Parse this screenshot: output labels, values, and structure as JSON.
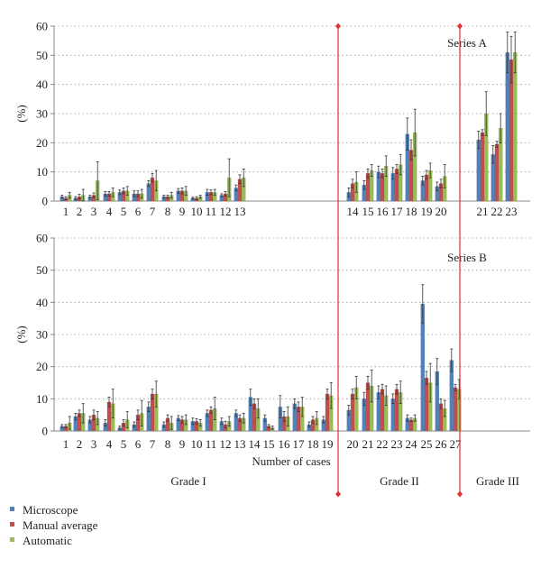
{
  "colors": {
    "microscope": "#4f81bd",
    "manual": "#c0504d",
    "automatic": "#9bbb59",
    "divider": "#e03030",
    "axis": "#888888",
    "grid": "#999999"
  },
  "legend": {
    "items": [
      {
        "label": "Microscope",
        "color": "#4f81bd"
      },
      {
        "label": "Manual average",
        "color": "#c0504d"
      },
      {
        "label": "Automatic",
        "color": "#9bbb59"
      }
    ]
  },
  "x_axis_title": "Number of cases",
  "grade_labels": [
    "Grade I",
    "Grade II",
    "Grade III"
  ],
  "chart_data": [
    {
      "type": "bar",
      "title": "Series A",
      "ylabel": "(%)",
      "ylim": [
        0,
        60
      ],
      "yticks": [
        0,
        10,
        20,
        30,
        40,
        50,
        60
      ],
      "y_grid": "dotted",
      "legend_position": "bottom-left",
      "series_names": [
        "Microscope",
        "Manual average",
        "Automatic"
      ],
      "groups": [
        {
          "grade": "Grade I",
          "categories": [
            "1",
            "2",
            "3",
            "4",
            "5",
            "6",
            "7",
            "8",
            "9",
            "10",
            "11",
            "12",
            "13"
          ],
          "series": [
            {
              "name": "Microscope",
              "values": [
                1.5,
                1.0,
                1.5,
                2.5,
                3.0,
                2.5,
                6.0,
                1.5,
                3.5,
                1.0,
                3.0,
                2.0,
                4.5
              ],
              "errors": [
                0.5,
                0.5,
                0.5,
                0.8,
                0.8,
                1.0,
                1.0,
                0.5,
                0.8,
                0.3,
                1.0,
                0.5,
                1.0
              ]
            },
            {
              "name": "Manual average",
              "values": [
                1.0,
                1.5,
                2.0,
                2.5,
                3.5,
                2.5,
                8.0,
                1.5,
                3.5,
                1.0,
                3.0,
                2.5,
                7.5
              ],
              "errors": [
                0.5,
                0.8,
                0.8,
                0.8,
                1.0,
                1.0,
                1.5,
                0.5,
                1.0,
                0.5,
                0.8,
                0.8,
                1.5
              ]
            },
            {
              "name": "Automatic",
              "values": [
                2.0,
                2.0,
                7.0,
                3.0,
                3.5,
                2.5,
                7.0,
                2.0,
                3.5,
                1.5,
                3.0,
                8.0,
                8.0
              ],
              "errors": [
                1.0,
                2.0,
                6.5,
                1.5,
                1.5,
                1.5,
                3.5,
                1.0,
                1.5,
                0.5,
                1.0,
                6.5,
                3.0
              ]
            }
          ]
        },
        {
          "grade": "Grade II",
          "categories": [
            "14",
            "15",
            "16",
            "17",
            "18",
            "19",
            "20"
          ],
          "series": [
            {
              "name": "Microscope",
              "values": [
                3.0,
                5.5,
                10.0,
                9.5,
                23.0,
                7.0,
                5.0
              ],
              "errors": [
                1.5,
                1.5,
                2.0,
                2.0,
                5.5,
                1.5,
                1.5
              ]
            },
            {
              "name": "Manual average",
              "values": [
                6.0,
                9.5,
                9.5,
                11.0,
                17.5,
                9.0,
                6.0
              ],
              "errors": [
                1.5,
                1.5,
                1.5,
                1.5,
                3.5,
                1.5,
                1.5
              ]
            },
            {
              "name": "Automatic",
              "values": [
                6.5,
                10.5,
                12.0,
                12.5,
                23.5,
                10.5,
                8.5
              ],
              "errors": [
                3.5,
                2.0,
                3.5,
                3.5,
                8.0,
                2.5,
                4.0
              ]
            }
          ]
        },
        {
          "grade": "Grade III",
          "categories": [
            "21",
            "22",
            "23"
          ],
          "series": [
            {
              "name": "Microscope",
              "values": [
                21.0,
                16.0,
                51.0
              ],
              "errors": [
                3.0,
                3.0,
                7.0
              ]
            },
            {
              "name": "Manual average",
              "values": [
                23.5,
                19.5,
                48.5
              ],
              "errors": [
                1.0,
                1.0,
                8.0
              ]
            },
            {
              "name": "Automatic",
              "values": [
                30.0,
                25.0,
                51.0
              ],
              "errors": [
                7.5,
                5.0,
                7.0
              ]
            }
          ]
        }
      ]
    },
    {
      "type": "bar",
      "title": "Series B",
      "ylabel": "(%)",
      "ylim": [
        0,
        60
      ],
      "yticks": [
        0,
        10,
        20,
        30,
        40,
        50,
        60
      ],
      "y_grid": "dotted",
      "legend_position": "bottom-left",
      "series_names": [
        "Microscope",
        "Manual average",
        "Automatic"
      ],
      "groups": [
        {
          "grade": "Grade I",
          "categories": [
            "1",
            "2",
            "3",
            "4",
            "5",
            "6",
            "7",
            "8",
            "9",
            "10",
            "11",
            "12",
            "13",
            "14",
            "15",
            "16",
            "17",
            "18",
            "19"
          ],
          "series": [
            {
              "name": "Microscope",
              "values": [
                1.5,
                4.5,
                3.5,
                2.5,
                1.0,
                2.0,
                7.5,
                2.0,
                4.0,
                3.0,
                5.5,
                3.0,
                5.5,
                10.5,
                4.0,
                7.5,
                8.5,
                2.0,
                3.5
              ],
              "errors": [
                0.5,
                1.0,
                1.0,
                1.0,
                0.5,
                0.8,
                1.5,
                0.8,
                0.8,
                1.0,
                1.0,
                1.0,
                1.0,
                2.5,
                1.0,
                3.5,
                1.5,
                0.8,
                1.0
              ]
            },
            {
              "name": "Manual average",
              "values": [
                1.5,
                5.5,
                5.0,
                9.0,
                2.5,
                5.0,
                11.5,
                4.0,
                3.5,
                3.0,
                6.5,
                2.0,
                4.0,
                8.5,
                1.5,
                4.5,
                7.5,
                3.5,
                11.5
              ],
              "errors": [
                0.5,
                1.0,
                1.5,
                1.5,
                1.0,
                1.5,
                1.5,
                1.0,
                1.0,
                0.8,
                1.0,
                1.0,
                1.0,
                1.5,
                0.5,
                1.5,
                1.5,
                1.0,
                1.5
              ]
            },
            {
              "name": "Automatic",
              "values": [
                2.5,
                5.5,
                4.0,
                8.5,
                3.5,
                5.5,
                11.5,
                2.5,
                3.5,
                2.5,
                7.0,
                3.0,
                4.0,
                7.0,
                1.0,
                4.5,
                7.5,
                4.0,
                11.0
              ],
              "errors": [
                2.0,
                3.0,
                2.0,
                4.5,
                2.5,
                4.0,
                4.0,
                2.0,
                1.5,
                1.0,
                3.5,
                1.5,
                1.5,
                3.0,
                0.5,
                3.0,
                3.0,
                2.0,
                4.0
              ]
            }
          ]
        },
        {
          "grade": "Grade II",
          "categories": [
            "20",
            "21",
            "22",
            "23",
            "24",
            "25",
            "26",
            "27"
          ],
          "series": [
            {
              "name": "Microscope",
              "values": [
                6.5,
                10.0,
                12.0,
                10.0,
                4.0,
                39.5,
                18.5,
                22.0
              ],
              "errors": [
                1.5,
                2.0,
                2.0,
                1.5,
                1.0,
                6.0,
                4.0,
                3.5
              ]
            },
            {
              "name": "Manual average",
              "values": [
                11.5,
                15.0,
                13.0,
                13.0,
                3.5,
                16.5,
                8.5,
                13.5
              ],
              "errors": [
                1.5,
                2.0,
                1.5,
                1.5,
                0.5,
                2.0,
                1.5,
                1.0
              ]
            },
            {
              "name": "Automatic",
              "values": [
                13.5,
                14.0,
                11.0,
                12.0,
                4.0,
                15.0,
                7.0,
                13.0
              ],
              "errors": [
                3.5,
                5.0,
                3.0,
                3.5,
                1.0,
                6.0,
                2.5,
                3.0
              ]
            }
          ]
        },
        {
          "grade": "Grade III",
          "categories": [],
          "series": []
        }
      ]
    }
  ]
}
